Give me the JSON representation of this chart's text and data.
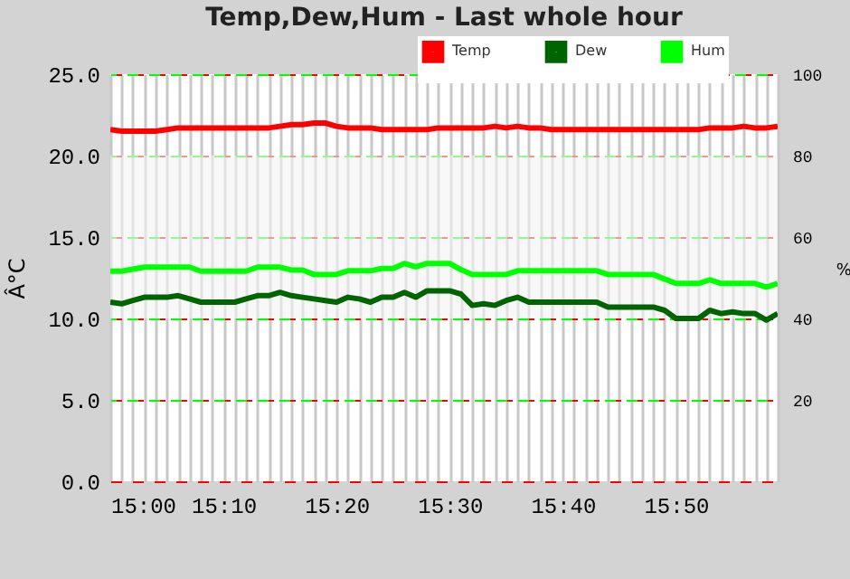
{
  "chart_data": {
    "type": "line",
    "title": "Temp,Dew,Hum - Last whole hour",
    "ylabel": "Â°C",
    "y2label": "%",
    "x": [
      15,
      15.0167,
      15.0333,
      15.05,
      15.0667,
      15.0833,
      15.1,
      15.1167,
      15.1333,
      15.15,
      15.1667,
      15.1833,
      15.2,
      15.2167,
      15.2333,
      15.25,
      15.2667,
      15.2833,
      15.3,
      15.3167,
      15.3333,
      15.35,
      15.3667,
      15.3833,
      15.4,
      15.4167,
      15.4333,
      15.45,
      15.4667,
      15.4833,
      15.5,
      15.5167,
      15.5333,
      15.55,
      15.5667,
      15.5833,
      15.6,
      15.6167,
      15.6333,
      15.65,
      15.6667,
      15.6833,
      15.7,
      15.7167,
      15.7333,
      15.75,
      15.7667,
      15.7833,
      15.8,
      15.8167,
      15.8333,
      15.85,
      15.8667,
      15.8833,
      15.9,
      15.9167,
      15.9333,
      15.95,
      15.9667,
      15.9833
    ],
    "series": [
      {
        "name": "Temp",
        "color": "#ff0000",
        "values": [
          21.6,
          21.5,
          21.5,
          21.5,
          21.5,
          21.6,
          21.7,
          21.7,
          21.7,
          21.7,
          21.7,
          21.7,
          21.7,
          21.7,
          21.7,
          21.8,
          21.9,
          21.9,
          22.0,
          22.0,
          21.8,
          21.7,
          21.7,
          21.7,
          21.6,
          21.6,
          21.6,
          21.6,
          21.6,
          21.7,
          21.7,
          21.7,
          21.7,
          21.7,
          21.8,
          21.7,
          21.8,
          21.7,
          21.7,
          21.6,
          21.6,
          21.6,
          21.6,
          21.6,
          21.6,
          21.6,
          21.6,
          21.6,
          21.6,
          21.6,
          21.6,
          21.6,
          21.6,
          21.7,
          21.7,
          21.7,
          21.8,
          21.7,
          21.7,
          21.8
        ]
      },
      {
        "name": "Dew",
        "color": "#006400",
        "values": [
          11.0,
          10.9,
          11.1,
          11.3,
          11.3,
          11.3,
          11.4,
          11.2,
          11.0,
          11.0,
          11.0,
          11.0,
          11.2,
          11.4,
          11.4,
          11.6,
          11.4,
          11.3,
          11.2,
          11.1,
          11.0,
          11.3,
          11.2,
          11.0,
          11.3,
          11.3,
          11.6,
          11.3,
          11.7,
          11.7,
          11.7,
          11.5,
          10.8,
          10.9,
          10.8,
          11.1,
          11.3,
          11.0,
          11.0,
          11.0,
          11.0,
          11.0,
          11.0,
          11.0,
          10.7,
          10.7,
          10.7,
          10.7,
          10.7,
          10.5,
          10.0,
          10.0,
          10.0,
          10.5,
          10.3,
          10.4,
          10.3,
          10.3,
          9.9,
          10.3
        ]
      },
      {
        "name": "Hum",
        "color": "#00ff00",
        "axis": "y2",
        "values": [
          51.6,
          51.6,
          52.1,
          52.6,
          52.6,
          52.6,
          52.6,
          52.6,
          51.6,
          51.6,
          51.6,
          51.6,
          51.6,
          52.6,
          52.6,
          52.6,
          51.9,
          51.9,
          50.8,
          50.8,
          50.8,
          51.7,
          51.7,
          51.7,
          52.3,
          52.3,
          53.5,
          52.7,
          53.5,
          53.5,
          53.5,
          52.0,
          50.8,
          50.8,
          50.8,
          50.8,
          51.7,
          51.7,
          51.7,
          51.7,
          51.7,
          51.7,
          51.7,
          51.7,
          50.8,
          50.8,
          50.8,
          50.8,
          50.8,
          49.7,
          48.6,
          48.6,
          48.6,
          49.5,
          48.6,
          48.6,
          48.6,
          48.6,
          47.7,
          48.6
        ]
      }
    ],
    "xlim": [
      15,
      15.9833
    ],
    "xticks": [
      {
        "value": 15,
        "label": "15:00"
      },
      {
        "value": 15.0167,
        "label": null
      },
      {
        "value": 15.0333,
        "label": null
      },
      {
        "value": 15.05,
        "label": null
      },
      {
        "value": 15.0667,
        "label": null
      },
      {
        "value": 15.0833,
        "label": null
      },
      {
        "value": 15.1,
        "label": null
      },
      {
        "value": 15.1167,
        "label": null
      },
      {
        "value": 15.1333,
        "label": null
      },
      {
        "value": 15.15,
        "label": null
      },
      {
        "value": 15.1667,
        "label": "15:10"
      },
      {
        "value": 15.1833,
        "label": null
      },
      {
        "value": 15.2,
        "label": null
      },
      {
        "value": 15.2167,
        "label": null
      },
      {
        "value": 15.2333,
        "label": null
      },
      {
        "value": 15.25,
        "label": null
      },
      {
        "value": 15.2667,
        "label": null
      },
      {
        "value": 15.2833,
        "label": null
      },
      {
        "value": 15.3,
        "label": null
      },
      {
        "value": 15.3167,
        "label": null
      },
      {
        "value": 15.3333,
        "label": "15:20"
      },
      {
        "value": 15.35,
        "label": null
      },
      {
        "value": 15.3667,
        "label": null
      },
      {
        "value": 15.3833,
        "label": null
      },
      {
        "value": 15.4,
        "label": null
      },
      {
        "value": 15.4167,
        "label": null
      },
      {
        "value": 15.4333,
        "label": null
      },
      {
        "value": 15.45,
        "label": null
      },
      {
        "value": 15.4667,
        "label": null
      },
      {
        "value": 15.4833,
        "label": null
      },
      {
        "value": 15.5,
        "label": "15:30"
      },
      {
        "value": 15.5167,
        "label": null
      },
      {
        "value": 15.5333,
        "label": null
      },
      {
        "value": 15.55,
        "label": null
      },
      {
        "value": 15.5667,
        "label": null
      },
      {
        "value": 15.5833,
        "label": null
      },
      {
        "value": 15.6,
        "label": null
      },
      {
        "value": 15.6167,
        "label": null
      },
      {
        "value": 15.6333,
        "label": null
      },
      {
        "value": 15.65,
        "label": null
      },
      {
        "value": 15.6667,
        "label": "15:40"
      },
      {
        "value": 15.6833,
        "label": null
      },
      {
        "value": 15.7,
        "label": null
      },
      {
        "value": 15.7167,
        "label": null
      },
      {
        "value": 15.7333,
        "label": null
      },
      {
        "value": 15.75,
        "label": null
      },
      {
        "value": 15.7667,
        "label": null
      },
      {
        "value": 15.7833,
        "label": null
      },
      {
        "value": 15.8,
        "label": null
      },
      {
        "value": 15.8167,
        "label": null
      },
      {
        "value": 15.8333,
        "label": "15:50"
      },
      {
        "value": 15.85,
        "label": null
      },
      {
        "value": 15.8667,
        "label": null
      },
      {
        "value": 15.8833,
        "label": null
      },
      {
        "value": 15.9,
        "label": null
      },
      {
        "value": 15.9167,
        "label": null
      },
      {
        "value": 15.9333,
        "label": null
      },
      {
        "value": 15.95,
        "label": null
      },
      {
        "value": 15.9667,
        "label": null
      },
      {
        "value": 15.9833,
        "label": null
      }
    ],
    "ylim": [
      0,
      25
    ],
    "yticks": [
      {
        "value": 0,
        "label": "0.0"
      },
      {
        "value": 5,
        "label": "5.0"
      },
      {
        "value": 10,
        "label": "10.0"
      },
      {
        "value": 15,
        "label": "15.0"
      },
      {
        "value": 20,
        "label": "20.0"
      },
      {
        "value": 25,
        "label": "25.0"
      }
    ],
    "y2lim": [
      0,
      100
    ],
    "y2ticks": [
      20,
      40,
      60,
      80,
      100
    ],
    "bands": [
      {
        "axis": "y",
        "from": 10,
        "to": 20,
        "color": "#f4f4f4"
      }
    ],
    "grid": true,
    "legend": "top",
    "marker": "none",
    "line_style": "solid"
  }
}
